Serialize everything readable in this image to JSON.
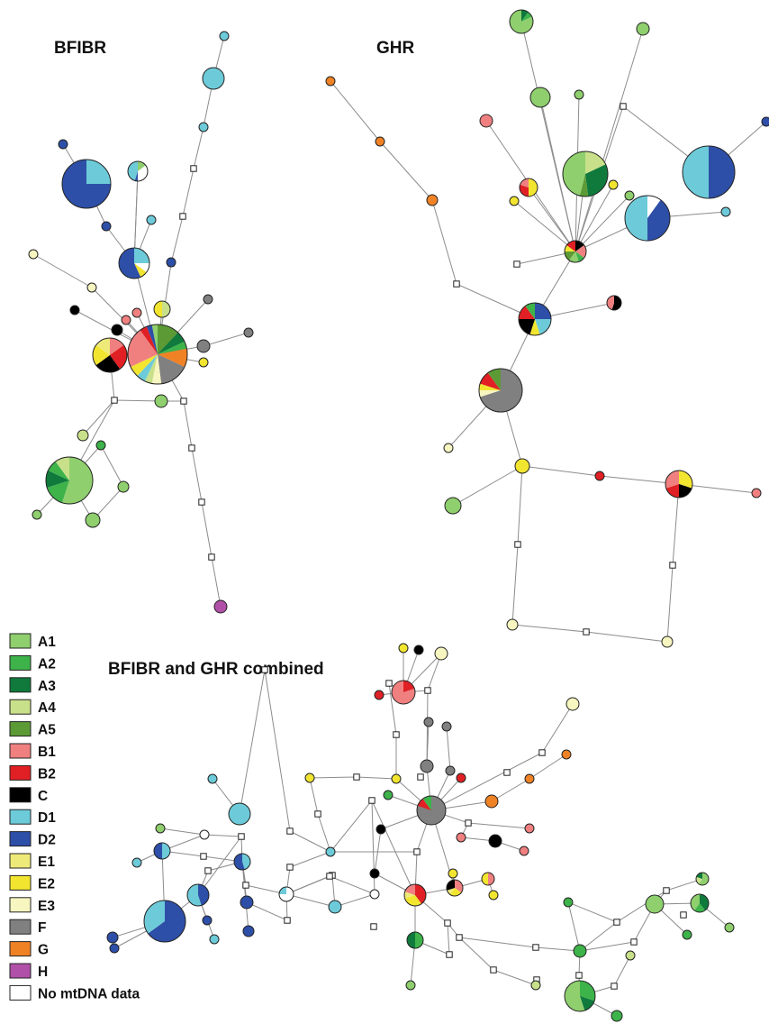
{
  "titles": {
    "bfibr": "BFIBR",
    "ghr": "GHR",
    "combined": "BFIBR and GHR combined"
  },
  "legend": [
    {
      "label": "A1",
      "color": "#8fcf6e"
    },
    {
      "label": "A2",
      "color": "#3db34a"
    },
    {
      "label": "A3",
      "color": "#0f7a3c"
    },
    {
      "label": "A4",
      "color": "#c9e08a"
    },
    {
      "label": "A5",
      "color": "#5c9a35"
    },
    {
      "label": "B1",
      "color": "#f08080"
    },
    {
      "label": "B2",
      "color": "#e02024"
    },
    {
      "label": "C",
      "color": "#000000"
    },
    {
      "label": "D1",
      "color": "#6dcbd9"
    },
    {
      "label": "D2",
      "color": "#2e4fa8"
    },
    {
      "label": "E1",
      "color": "#eeea7a"
    },
    {
      "label": "E2",
      "color": "#f2e530"
    },
    {
      "label": "E3",
      "color": "#f7f5c0"
    },
    {
      "label": "F",
      "color": "#808080"
    },
    {
      "label": "G",
      "color": "#f08226"
    },
    {
      "label": "H",
      "color": "#b050a8"
    },
    {
      "label": "No mtDNA data",
      "color": "#ffffff"
    }
  ]
}
